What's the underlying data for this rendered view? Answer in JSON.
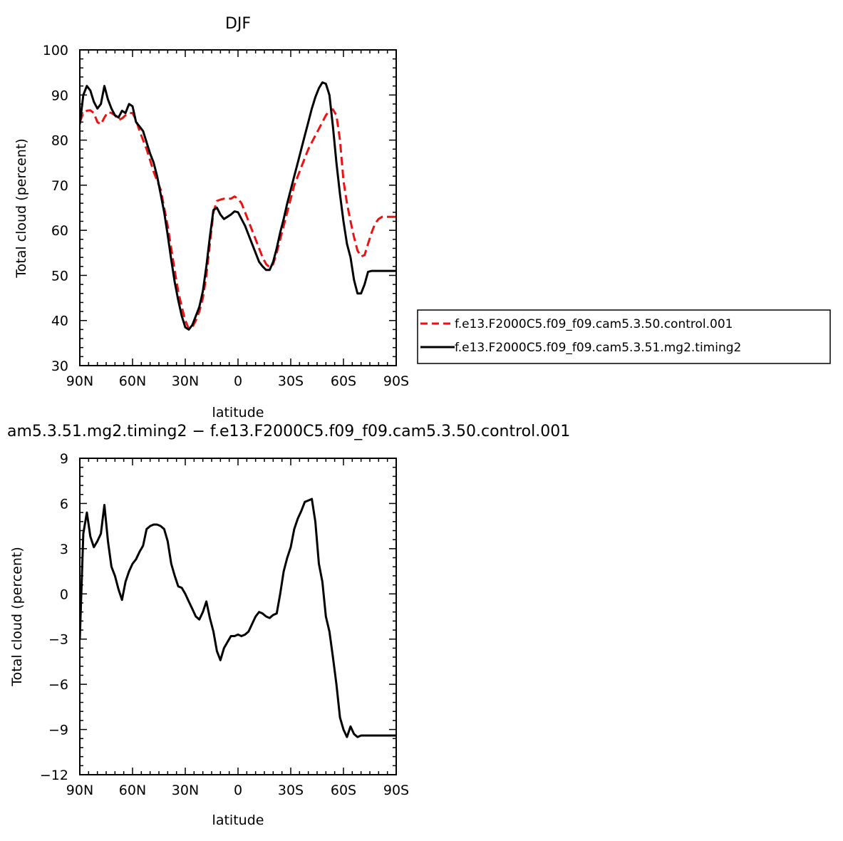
{
  "chart_data": [
    {
      "type": "line",
      "title": "DJF",
      "xlabel": "latitude",
      "ylabel": "Total cloud (percent)",
      "xlim": [
        90,
        -90
      ],
      "ylim": [
        30,
        100
      ],
      "xticks": [
        90,
        60,
        30,
        0,
        -30,
        -60,
        -90
      ],
      "xtick_labels": [
        "90N",
        "60N",
        "30N",
        "0",
        "30S",
        "60S",
        "90S"
      ],
      "yticks": [
        30,
        40,
        50,
        60,
        70,
        80,
        90,
        100
      ],
      "ytick_labels": [
        "30",
        "40",
        "50",
        "60",
        "70",
        "80",
        "90",
        "100"
      ],
      "grid": false,
      "legend_position": "right-center",
      "series": [
        {
          "name": "f.e13.F2000C5.f09_f09.cam5.3.50.control.001",
          "color": "#ee1111",
          "dash": "dashed",
          "x": [
            90,
            88,
            86,
            84,
            82,
            80,
            78,
            76,
            74,
            72,
            70,
            68,
            66,
            64,
            62,
            60,
            58,
            56,
            54,
            52,
            50,
            48,
            46,
            44,
            42,
            40,
            38,
            36,
            34,
            32,
            30,
            28,
            26,
            24,
            22,
            20,
            18,
            16,
            14,
            12,
            10,
            8,
            6,
            4,
            2,
            0,
            -2,
            -4,
            -6,
            -8,
            -10,
            -12,
            -14,
            -16,
            -18,
            -20,
            -22,
            -24,
            -26,
            -28,
            -30,
            -32,
            -34,
            -36,
            -38,
            -40,
            -42,
            -44,
            -46,
            -48,
            -50,
            -52,
            -54,
            -56,
            -58,
            -60,
            -62,
            -64,
            -66,
            -68,
            -70,
            -72,
            -74,
            -76,
            -78,
            -80,
            -82,
            -84,
            -86,
            -88,
            -90
          ],
          "y": [
            84,
            86,
            86.5,
            86.6,
            86,
            84,
            83.5,
            85,
            86.2,
            86,
            85.5,
            84.5,
            84.8,
            85.5,
            86,
            86,
            84.5,
            82,
            80,
            78,
            75.5,
            73,
            71,
            69,
            65,
            61,
            56,
            51,
            46.5,
            43,
            40,
            38.2,
            38.5,
            40,
            42,
            45,
            50,
            57,
            64,
            66.5,
            66.8,
            67,
            67,
            67,
            67.5,
            67,
            66,
            64,
            62,
            60,
            58,
            56,
            54,
            52.5,
            51.8,
            52.5,
            55,
            58,
            61,
            64,
            67,
            70,
            72,
            74,
            76,
            78,
            79.5,
            81,
            82.5,
            84,
            85.5,
            86.5,
            86.8,
            85.5,
            80,
            71,
            66,
            62,
            58.5,
            55.5,
            54.2,
            54.5,
            57,
            59.5,
            61.5,
            62.5,
            63,
            63,
            63,
            63,
            63
          ]
        },
        {
          "name": "f.e13.F2000C5.f09_f09.cam5.3.51.mg2.timing2",
          "color": "#000000",
          "dash": "solid",
          "x": [
            90,
            88,
            86,
            84,
            82,
            80,
            78,
            76,
            74,
            72,
            70,
            68,
            66,
            64,
            62,
            60,
            58,
            56,
            54,
            52,
            50,
            48,
            46,
            44,
            42,
            40,
            38,
            36,
            34,
            32,
            30,
            28,
            26,
            24,
            22,
            20,
            18,
            16,
            14,
            12,
            10,
            8,
            6,
            4,
            2,
            0,
            -2,
            -4,
            -6,
            -8,
            -10,
            -12,
            -14,
            -16,
            -18,
            -20,
            -22,
            -24,
            -26,
            -28,
            -30,
            -32,
            -34,
            -36,
            -38,
            -40,
            -42,
            -44,
            -46,
            -48,
            -50,
            -52,
            -54,
            -56,
            -58,
            -60,
            -62,
            -64,
            -66,
            -68,
            -70,
            -72,
            -74,
            -76,
            -78,
            -80,
            -82,
            -84,
            -86,
            -88,
            -90
          ],
          "y": [
            83.5,
            90,
            92,
            91,
            88.5,
            87,
            88,
            92,
            89,
            87,
            85.5,
            85,
            86.5,
            86,
            88,
            87.5,
            84,
            83,
            82,
            79.5,
            77,
            75,
            72,
            68,
            64,
            59,
            53.5,
            48.5,
            44.5,
            41,
            38.5,
            38,
            39,
            41,
            43,
            46.5,
            52,
            58.5,
            64.5,
            65,
            63.5,
            62.5,
            63,
            63.5,
            64.2,
            64,
            62.5,
            61,
            59,
            57,
            55,
            53,
            52,
            51.2,
            51.2,
            53,
            56,
            59.5,
            62.5,
            66,
            69,
            72,
            75,
            78,
            81,
            84,
            87,
            89.5,
            91.5,
            92.8,
            92.5,
            90,
            83,
            75,
            68,
            62,
            57,
            54,
            49,
            46,
            46,
            48,
            50.8,
            51,
            51,
            51,
            51,
            51,
            51,
            51,
            51
          ]
        }
      ]
    },
    {
      "type": "line",
      "title": "am5.3.51.mg2.timing2 − f.e13.F2000C5.f09_f09.cam5.3.50.control.001",
      "xlabel": "latitude",
      "ylabel": "Total cloud (percent)",
      "xlim": [
        90,
        -90
      ],
      "ylim": [
        -12,
        9
      ],
      "xticks": [
        90,
        60,
        30,
        0,
        -30,
        -60,
        -90
      ],
      "xtick_labels": [
        "90N",
        "60N",
        "30N",
        "0",
        "30S",
        "60S",
        "90S"
      ],
      "yticks": [
        -12,
        -9,
        -6,
        -3,
        0,
        3,
        6,
        9
      ],
      "ytick_labels": [
        "−12",
        "−9",
        "−6",
        "−3",
        "0",
        "3",
        "6",
        "9"
      ],
      "grid": false,
      "series": [
        {
          "color": "#000000",
          "dash": "solid",
          "x": [
            90,
            88,
            86,
            84,
            82,
            80,
            78,
            76,
            74,
            72,
            70,
            68,
            66,
            64,
            62,
            60,
            58,
            56,
            54,
            52,
            50,
            48,
            46,
            44,
            42,
            40,
            38,
            36,
            34,
            32,
            30,
            28,
            26,
            24,
            22,
            20,
            18,
            16,
            14,
            12,
            10,
            8,
            6,
            4,
            2,
            0,
            -2,
            -4,
            -6,
            -8,
            -10,
            -12,
            -14,
            -16,
            -18,
            -20,
            -22,
            -24,
            -26,
            -28,
            -30,
            -32,
            -34,
            -36,
            -38,
            -40,
            -42,
            -44,
            -46,
            -48,
            -50,
            -52,
            -54,
            -56,
            -58,
            -60,
            -62,
            -64,
            -66,
            -68,
            -70,
            -72,
            -74,
            -76,
            -78,
            -80,
            -82,
            -84,
            -86,
            -88,
            -90
          ],
          "y": [
            -3,
            4,
            5.4,
            3.8,
            3.1,
            3.5,
            4,
            5.9,
            3.5,
            1.8,
            1.2,
            0.3,
            -0.4,
            0.8,
            1.5,
            2,
            2.3,
            2.8,
            3.2,
            4.3,
            4.5,
            4.6,
            4.6,
            4.5,
            4.3,
            3.5,
            2,
            1.2,
            0.5,
            0.4,
            0,
            -0.5,
            -1,
            -1.5,
            -1.7,
            -1.2,
            -0.5,
            -1.6,
            -2.5,
            -3.8,
            -4.4,
            -3.6,
            -3.2,
            -2.8,
            -2.8,
            -2.7,
            -2.8,
            -2.7,
            -2.5,
            -2,
            -1.5,
            -1.2,
            -1.3,
            -1.5,
            -1.6,
            -1.4,
            -1.3,
            0,
            1.5,
            2.4,
            3.1,
            4.3,
            5,
            5.5,
            6.1,
            6.2,
            6.3,
            4.8,
            2,
            0.8,
            -1.5,
            -2.5,
            -4.2,
            -6,
            -8.2,
            -9,
            -9.5,
            -8.8,
            -9.3,
            -9.5,
            -9.4,
            -9.4,
            -9.4,
            -9.4,
            -9.4,
            -9.4,
            -9.4,
            -9.4,
            -9.4,
            -9.4,
            -9.4
          ]
        }
      ]
    }
  ]
}
